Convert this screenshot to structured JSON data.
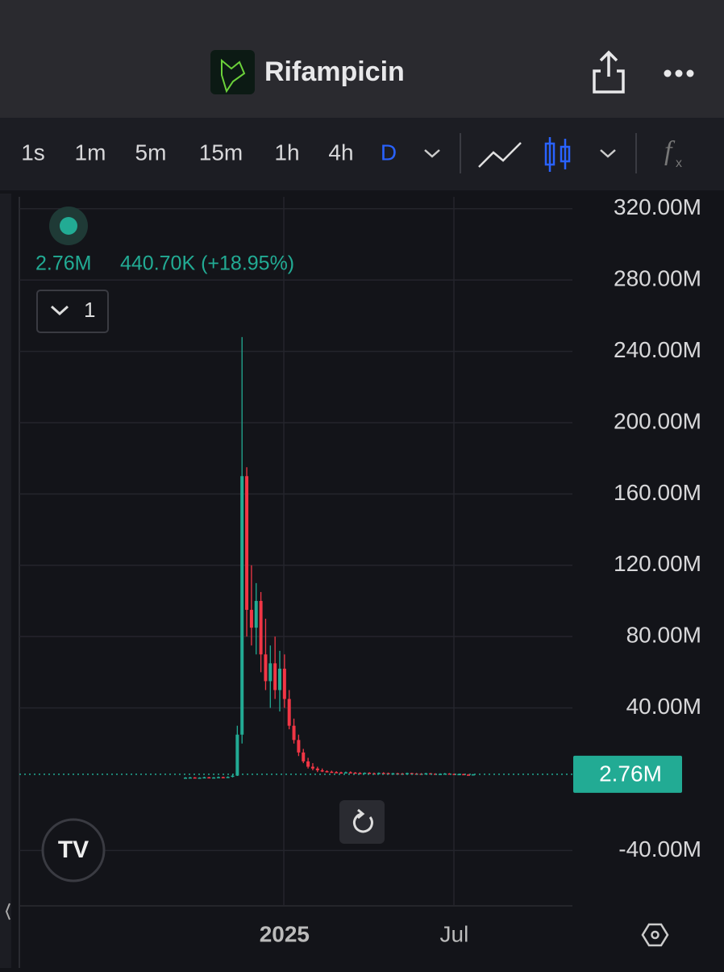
{
  "header": {
    "title": "Rifampicin"
  },
  "toolbar": {
    "intervals": [
      "1s",
      "1m",
      "5m",
      "15m",
      "1h",
      "4h",
      "D"
    ]
  },
  "legend": {
    "price": "2.76M",
    "change": "440.70K (+18.95%)",
    "indicators": "1"
  },
  "chart_data": {
    "type": "candlestick",
    "up_color": "#22ab94",
    "down_color": "#f23645",
    "categories": [
      null,
      null,
      null,
      null,
      null,
      null,
      null,
      null,
      null,
      null,
      null,
      null,
      null,
      null,
      null,
      null,
      null,
      null,
      null,
      null,
      null,
      "2025",
      null,
      null,
      null,
      null,
      null,
      null,
      null,
      null,
      null,
      null,
      null,
      null,
      null,
      null,
      null,
      null,
      null,
      null,
      null,
      null,
      null,
      null,
      null,
      null,
      null,
      null,
      null,
      null,
      null,
      null,
      null,
      null,
      null,
      null,
      null,
      "Jul",
      null,
      null,
      null,
      null
    ],
    "open": [
      0.8,
      0.9,
      1.0,
      0.8,
      0.9,
      1.1,
      0.9,
      1.0,
      1.2,
      1.0,
      1.3,
      2.0,
      25,
      170,
      95,
      85,
      100,
      70,
      55,
      65,
      50,
      62,
      45,
      30,
      22,
      15,
      10,
      7,
      6,
      5,
      4.5,
      4.2,
      4.0,
      3.8,
      3.6,
      3.9,
      3.7,
      3.5,
      3.4,
      3.6,
      3.3,
      3.2,
      3.5,
      3.4,
      3.1,
      3.3,
      3.2,
      3.0,
      3.4,
      3.2,
      3.1,
      3.0,
      3.3,
      3.1,
      2.9,
      3.0,
      3.2,
      3.0,
      2.8,
      2.9,
      2.6,
      2.3
    ],
    "high": [
      1.2,
      1.3,
      1.2,
      1.1,
      1.4,
      1.3,
      1.2,
      1.5,
      1.4,
      1.6,
      2.5,
      30,
      248,
      175,
      120,
      110,
      105,
      90,
      75,
      80,
      72,
      70,
      50,
      34,
      25,
      17,
      12,
      9,
      7,
      6,
      5,
      4.8,
      4.5,
      4.2,
      4.3,
      4.4,
      4.0,
      3.9,
      3.8,
      3.9,
      3.7,
      3.8,
      3.9,
      3.7,
      3.6,
      3.6,
      3.5,
      3.7,
      3.6,
      3.5,
      3.4,
      3.6,
      3.5,
      3.3,
      3.3,
      3.5,
      3.4,
      3.2,
      3.2,
      3.1,
      2.9,
      2.9
    ],
    "low": [
      0.5,
      0.6,
      0.7,
      0.5,
      0.7,
      0.8,
      0.6,
      0.8,
      0.9,
      0.8,
      1.0,
      1.8,
      20,
      80,
      75,
      70,
      60,
      50,
      40,
      45,
      38,
      40,
      28,
      20,
      13,
      9,
      6,
      5,
      4,
      4,
      3.8,
      3.7,
      3.5,
      3.3,
      3.3,
      3.4,
      3.2,
      3.1,
      3.0,
      3.1,
      2.9,
      2.9,
      3.0,
      2.9,
      2.8,
      2.9,
      2.8,
      2.8,
      2.9,
      2.8,
      2.7,
      2.8,
      2.8,
      2.7,
      2.6,
      2.7,
      2.8,
      2.6,
      2.5,
      2.4,
      2.2,
      2.2
    ],
    "close": [
      0.9,
      1.0,
      0.8,
      0.9,
      1.1,
      0.9,
      1.0,
      1.2,
      1.0,
      1.3,
      2.0,
      25,
      170,
      95,
      85,
      100,
      70,
      55,
      65,
      50,
      62,
      45,
      30,
      22,
      15,
      10,
      7,
      6,
      5,
      4.5,
      4.2,
      4.0,
      3.8,
      3.6,
      3.9,
      3.7,
      3.5,
      3.4,
      3.6,
      3.3,
      3.2,
      3.5,
      3.4,
      3.1,
      3.3,
      3.2,
      3.0,
      3.4,
      3.2,
      3.1,
      3.0,
      3.3,
      3.1,
      2.9,
      3.0,
      3.2,
      3.0,
      2.8,
      2.9,
      2.6,
      2.3,
      2.76
    ],
    "ylim": [
      -70,
      326
    ],
    "yticks": [
      {
        "value": 320,
        "label": "320.00M"
      },
      {
        "value": 280,
        "label": "280.00M"
      },
      {
        "value": 240,
        "label": "240.00M"
      },
      {
        "value": 200,
        "label": "200.00M"
      },
      {
        "value": 160,
        "label": "160.00M"
      },
      {
        "value": 120,
        "label": "120.00M"
      },
      {
        "value": 80,
        "label": "80.00M"
      },
      {
        "value": 40,
        "label": "40.00M"
      },
      {
        "value": -40,
        "label": "-40.00M"
      }
    ],
    "last_price": {
      "value": 2.76,
      "label": "2.76M"
    },
    "grid": true
  }
}
